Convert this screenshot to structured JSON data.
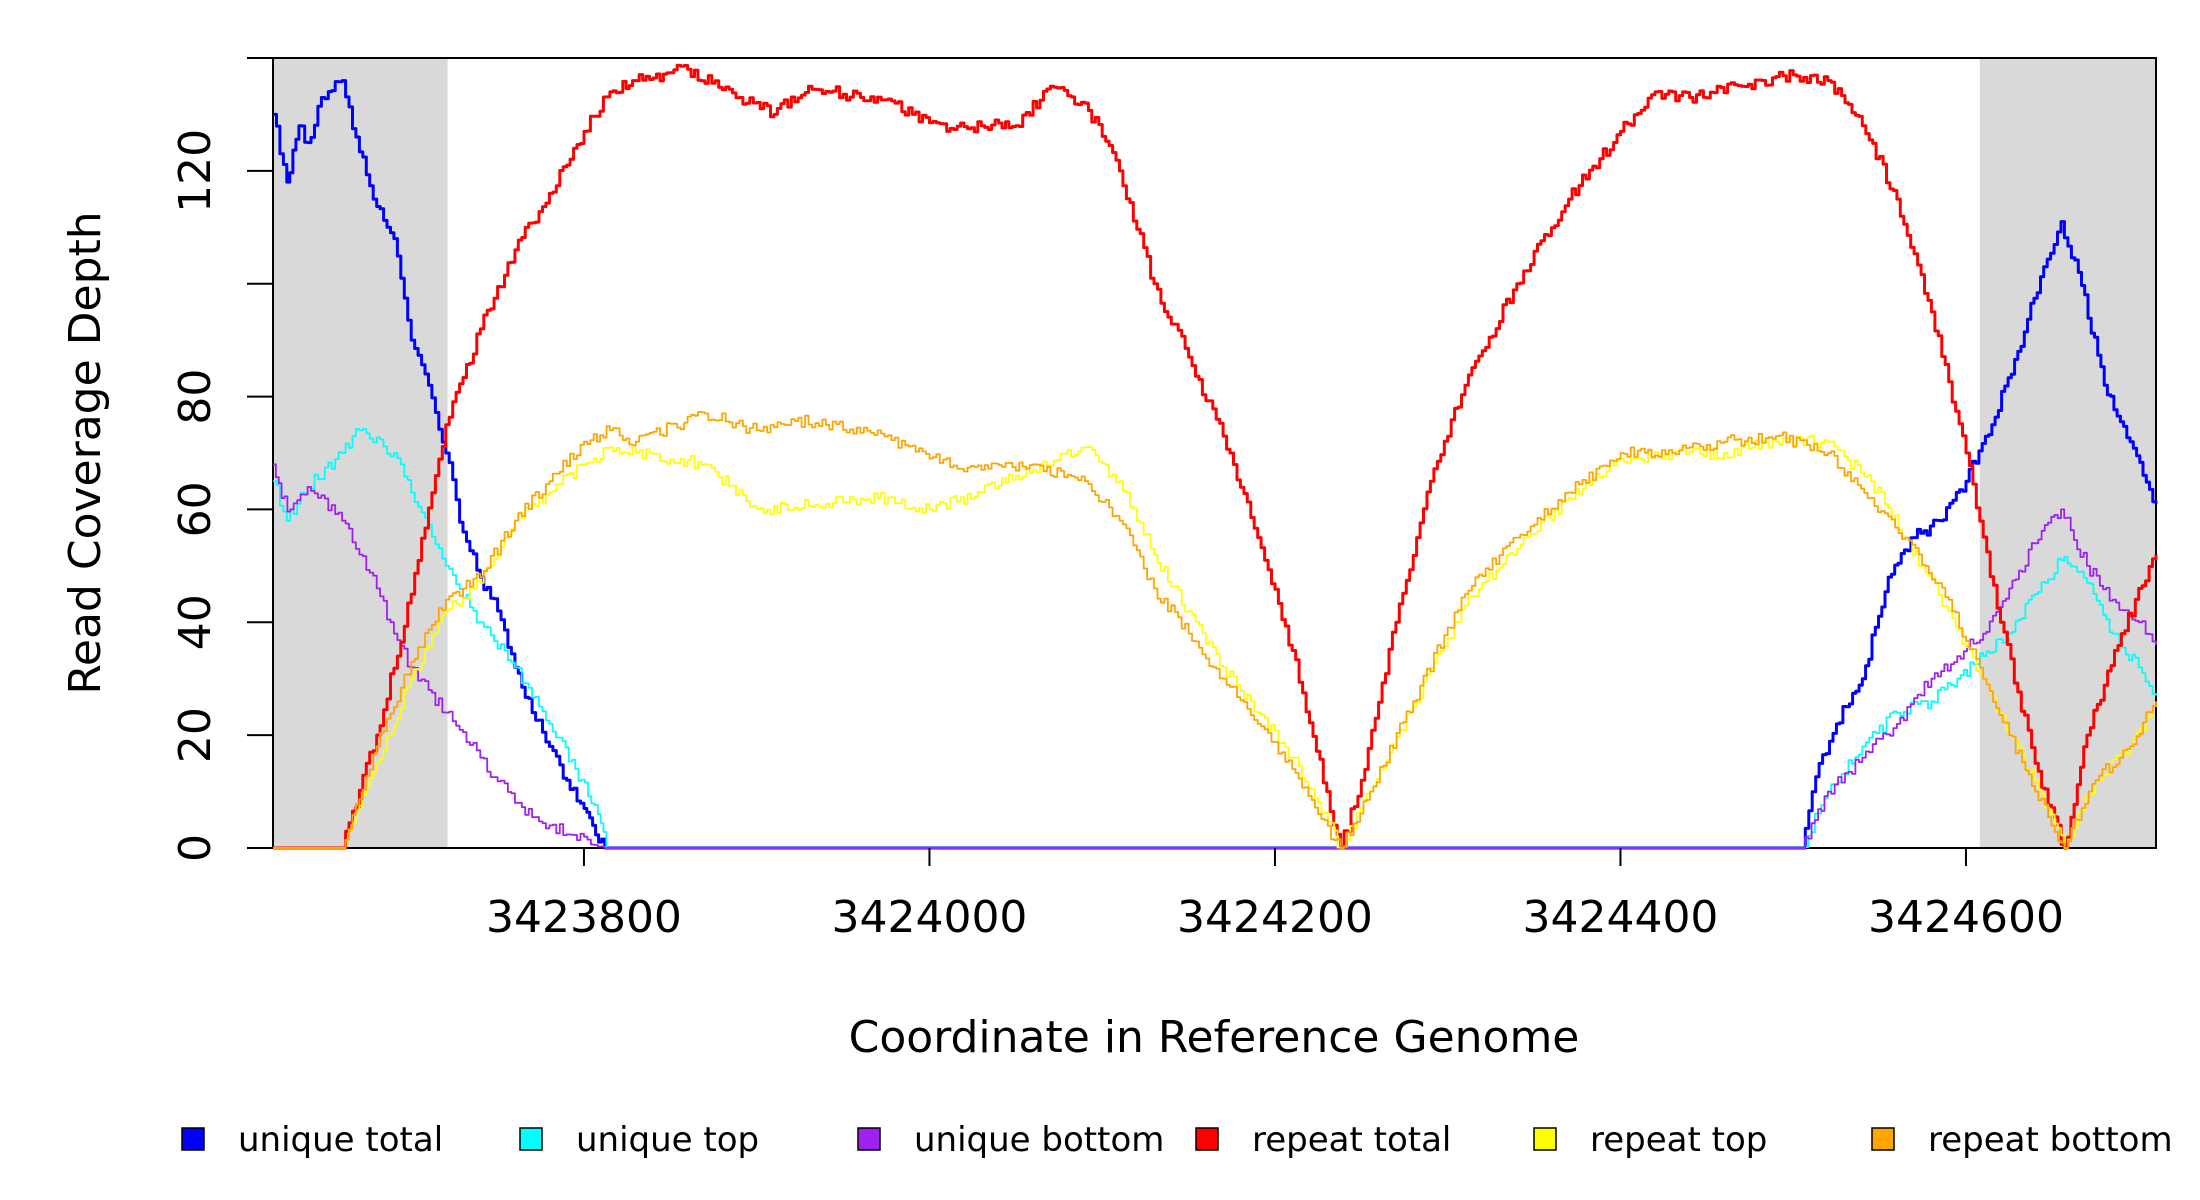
{
  "chart_data": {
    "type": "line",
    "title": "",
    "xlabel": "Coordinate in Reference Genome",
    "ylabel": "Read Coverage Depth",
    "xlim": [
      3423620,
      3424710
    ],
    "ylim": [
      0,
      140
    ],
    "x_ticks": [
      {
        "value": 3423800,
        "label": "3423800"
      },
      {
        "value": 3424000,
        "label": "3424000"
      },
      {
        "value": 3424200,
        "label": "3424200"
      },
      {
        "value": 3424400,
        "label": "3424400"
      },
      {
        "value": 3424600,
        "label": "3424600"
      }
    ],
    "y_ticks": [
      {
        "value": 0,
        "label": "0"
      },
      {
        "value": 20,
        "label": "20"
      },
      {
        "value": 40,
        "label": "40"
      },
      {
        "value": 60,
        "label": "60"
      },
      {
        "value": 80,
        "label": "80"
      },
      {
        "value": 100,
        "label": ""
      },
      {
        "value": 120,
        "label": "120"
      },
      {
        "value": 140,
        "label": ""
      }
    ],
    "shaded_regions": [
      {
        "x_start": 3423620,
        "x_end": 3423721,
        "color": "#d9d9d9"
      },
      {
        "x_start": 3424608,
        "x_end": 3424710,
        "color": "#d9d9d9"
      }
    ],
    "legend_position": "bottom",
    "series": [
      {
        "name": "unique total",
        "color": "#0000ff",
        "x": [
          3423620,
          3423628,
          3423635,
          3423640,
          3423648,
          3423660,
          3423668,
          3423678,
          3423690,
          3423700,
          3423710,
          3423720,
          3423730,
          3423740,
          3423750,
          3423760,
          3423770,
          3423780,
          3423790,
          3423800,
          3423805,
          3423812,
          3424505,
          3424515,
          3424525,
          3424540,
          3424555,
          3424570,
          3424585,
          3424600,
          3424615,
          3424630,
          3424645,
          3424655,
          3424665,
          3424680,
          3424695,
          3424710
        ],
        "y": [
          130,
          118,
          128,
          125,
          133,
          136,
          126,
          115,
          108,
          90,
          82,
          70,
          56,
          48,
          42,
          32,
          24,
          18,
          12,
          7,
          4,
          0,
          0,
          15,
          22,
          30,
          48,
          55,
          58,
          65,
          75,
          88,
          103,
          111,
          102,
          82,
          72,
          61
        ]
      },
      {
        "name": "unique top",
        "color": "#00ffff",
        "x": [
          3423620,
          3423628,
          3423640,
          3423660,
          3423670,
          3423690,
          3423700,
          3423720,
          3423740,
          3423760,
          3423780,
          3423795,
          3423808,
          3423813,
          3424505,
          3424520,
          3424540,
          3424560,
          3424580,
          3424595,
          3424610,
          3424625,
          3424640,
          3424655,
          3424670,
          3424685,
          3424700,
          3424710
        ],
        "y": [
          65,
          58,
          64,
          70,
          74,
          70,
          63,
          50,
          40,
          32,
          22,
          14,
          6,
          0,
          0,
          10,
          18,
          24,
          26,
          30,
          34,
          38,
          45,
          51,
          47,
          38,
          32,
          27
        ]
      },
      {
        "name": "unique bottom",
        "color": "#a020f0",
        "x": [
          3423620,
          3423625,
          3423630,
          3423640,
          3423660,
          3423670,
          3423680,
          3423690,
          3423700,
          3423710,
          3423720,
          3423740,
          3423760,
          3423780,
          3423800,
          3423812,
          3424505,
          3424520,
          3424540,
          3424560,
          3424580,
          3424595,
          3424610,
          3424625,
          3424640,
          3424655,
          3424670,
          3424685,
          3424700,
          3424710
        ],
        "y": [
          68,
          62,
          60,
          64,
          58,
          52,
          46,
          38,
          32,
          28,
          24,
          16,
          8,
          4,
          2,
          0,
          0,
          10,
          16,
          22,
          30,
          34,
          38,
          46,
          54,
          60,
          50,
          44,
          40,
          36
        ]
      },
      {
        "name": "repeat total",
        "color": "#ff0000",
        "x": [
          3423620,
          3423660,
          3423680,
          3423700,
          3423720,
          3423740,
          3423760,
          3423780,
          3423800,
          3423815,
          3423830,
          3423860,
          3423890,
          3423910,
          3423930,
          3423960,
          3423980,
          3423990,
          3424010,
          3424030,
          3424050,
          3424070,
          3424090,
          3424110,
          3424130,
          3424150,
          3424170,
          3424190,
          3424210,
          3424230,
          3424238,
          3424250,
          3424270,
          3424290,
          3424310,
          3424340,
          3424370,
          3424400,
          3424420,
          3424440,
          3424470,
          3424500,
          3424520,
          3424540,
          3424560,
          3424580,
          3424600,
          3424620,
          3424640,
          3424657,
          3424670,
          3424690,
          3424710
        ],
        "y": [
          0,
          0,
          20,
          45,
          75,
          92,
          106,
          116,
          127,
          134,
          136,
          138,
          133,
          130,
          135,
          133,
          132,
          130,
          127,
          128,
          128,
          135,
          132,
          120,
          100,
          87,
          73,
          55,
          35,
          10,
          0,
          12,
          40,
          65,
          82,
          100,
          115,
          127,
          134,
          133,
          135,
          137,
          136,
          128,
          115,
          95,
          70,
          40,
          15,
          0,
          20,
          38,
          52
        ]
      },
      {
        "name": "repeat top",
        "color": "#ffff00",
        "x": [
          3423620,
          3423660,
          3423680,
          3423700,
          3423720,
          3423740,
          3423760,
          3423780,
          3423800,
          3423815,
          3423830,
          3423870,
          3423900,
          3423940,
          3423970,
          3424000,
          3424030,
          3424060,
          3424090,
          3424110,
          3424130,
          3424150,
          3424170,
          3424190,
          3424210,
          3424225,
          3424238,
          3424255,
          3424280,
          3424310,
          3424340,
          3424370,
          3424400,
          3424430,
          3424460,
          3424490,
          3424520,
          3424545,
          3424565,
          3424590,
          3424610,
          3424625,
          3424640,
          3424657,
          3424675,
          3424695,
          3424710
        ],
        "y": [
          0,
          0,
          15,
          30,
          42,
          47,
          58,
          63,
          68,
          71,
          70,
          68,
          60,
          61,
          62,
          60,
          63,
          67,
          71,
          65,
          52,
          42,
          32,
          24,
          16,
          8,
          0,
          10,
          25,
          43,
          53,
          62,
          69,
          70,
          70,
          72,
          72,
          65,
          55,
          42,
          30,
          20,
          12,
          0,
          12,
          18,
          25
        ]
      },
      {
        "name": "repeat bottom",
        "color": "#ffa500",
        "x": [
          3423620,
          3423660,
          3423680,
          3423700,
          3423720,
          3423740,
          3423760,
          3423780,
          3423800,
          3423815,
          3423830,
          3423870,
          3423900,
          3423920,
          3423940,
          3423970,
          3424000,
          3424030,
          3424060,
          3424090,
          3424110,
          3424130,
          3424150,
          3424170,
          3424190,
          3424210,
          3424225,
          3424238,
          3424255,
          3424280,
          3424310,
          3424340,
          3424370,
          3424400,
          3424430,
          3424460,
          3424490,
          3424520,
          3424545,
          3424565,
          3424590,
          3424610,
          3424625,
          3424640,
          3424657,
          3424675,
          3424695,
          3424710
        ],
        "y": [
          0,
          0,
          18,
          33,
          44,
          48,
          58,
          65,
          72,
          74,
          72,
          77,
          74,
          76,
          75,
          74,
          69,
          67,
          68,
          65,
          58,
          46,
          38,
          30,
          22,
          14,
          6,
          0,
          10,
          26,
          45,
          55,
          63,
          70,
          70,
          72,
          73,
          70,
          62,
          55,
          44,
          30,
          20,
          10,
          0,
          12,
          18,
          26
        ]
      }
    ]
  }
}
